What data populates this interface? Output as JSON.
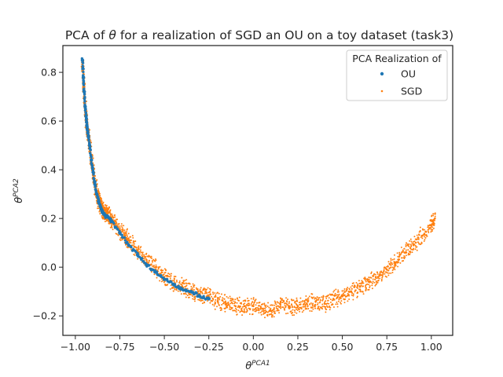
{
  "chart_data": {
    "type": "scatter",
    "title": "PCA of θ for a realization of SGD an OU on a toy dataset (task3)",
    "title_parts": {
      "prefix": "PCA of ",
      "theta": "θ",
      "suffix": " for a realization of SGD an OU on a toy dataset (task3)"
    },
    "xlabel": {
      "base": "θ",
      "sup": "PCA1"
    },
    "ylabel": {
      "base": "θ",
      "sup": "PCA2"
    },
    "xlim": [
      -1.07,
      1.12
    ],
    "ylim": [
      -0.28,
      0.91
    ],
    "xticks": [
      -1.0,
      -0.75,
      -0.5,
      -0.25,
      0.0,
      0.25,
      0.5,
      0.75,
      1.0
    ],
    "xtick_labels": [
      "−1.00",
      "−0.75",
      "−0.50",
      "−0.25",
      "0.00",
      "0.25",
      "0.50",
      "0.75",
      "1.00"
    ],
    "yticks": [
      -0.2,
      0.0,
      0.2,
      0.4,
      0.6,
      0.8
    ],
    "ytick_labels": [
      "−0.2",
      "0.0",
      "0.2",
      "0.4",
      "0.6",
      "0.8"
    ],
    "grid": false,
    "legend": {
      "title": "PCA Realization of",
      "position": "top-right",
      "entries": [
        {
          "name": "OU",
          "color": "#1f77b4"
        },
        {
          "name": "SGD",
          "color": "#ff7f0e"
        }
      ]
    },
    "series": [
      {
        "name": "OU",
        "color": "#1f77b4",
        "marker_size": 2.2,
        "x": [
          -0.96,
          -0.955,
          -0.95,
          -0.945,
          -0.94,
          -0.935,
          -0.93,
          -0.92,
          -0.91,
          -0.9,
          -0.89,
          -0.88,
          -0.87,
          -0.86,
          -0.85,
          -0.84,
          -0.83,
          -0.82,
          -0.8,
          -0.75,
          -0.7,
          -0.65,
          -0.6,
          -0.55,
          -0.5,
          -0.45,
          -0.4,
          -0.35,
          -0.3,
          -0.25
        ],
        "y": [
          0.85,
          0.78,
          0.72,
          0.66,
          0.62,
          0.58,
          0.55,
          0.5,
          0.44,
          0.39,
          0.34,
          0.3,
          0.27,
          0.25,
          0.23,
          0.22,
          0.21,
          0.21,
          0.19,
          0.14,
          0.09,
          0.05,
          0.01,
          -0.02,
          -0.05,
          -0.07,
          -0.09,
          -0.1,
          -0.12,
          -0.13
        ]
      },
      {
        "name": "SGD",
        "color": "#ff7f0e",
        "marker_size": 1.3,
        "x": [
          -0.96,
          -0.955,
          -0.95,
          -0.945,
          -0.94,
          -0.935,
          -0.93,
          -0.92,
          -0.91,
          -0.9,
          -0.89,
          -0.88,
          -0.87,
          -0.86,
          -0.85,
          -0.84,
          -0.83,
          -0.82,
          -0.8,
          -0.78,
          -0.75,
          -0.72,
          -0.7,
          -0.65,
          -0.6,
          -0.55,
          -0.5,
          -0.45,
          -0.4,
          -0.35,
          -0.3,
          -0.25,
          -0.2,
          -0.15,
          -0.1,
          -0.05,
          0.0,
          0.05,
          0.1,
          0.15,
          0.2,
          0.25,
          0.3,
          0.35,
          0.4,
          0.45,
          0.5,
          0.55,
          0.6,
          0.65,
          0.7,
          0.75,
          0.8,
          0.85,
          0.9,
          0.95,
          1.0,
          1.02
        ],
        "y": [
          0.84,
          0.78,
          0.72,
          0.66,
          0.62,
          0.58,
          0.55,
          0.5,
          0.44,
          0.39,
          0.34,
          0.31,
          0.28,
          0.26,
          0.24,
          0.23,
          0.22,
          0.22,
          0.2,
          0.18,
          0.15,
          0.13,
          0.11,
          0.07,
          0.03,
          0.0,
          -0.04,
          -0.07,
          -0.08,
          -0.1,
          -0.11,
          -0.12,
          -0.14,
          -0.15,
          -0.16,
          -0.16,
          -0.16,
          -0.17,
          -0.18,
          -0.15,
          -0.16,
          -0.16,
          -0.15,
          -0.14,
          -0.15,
          -0.13,
          -0.12,
          -0.1,
          -0.08,
          -0.06,
          -0.04,
          -0.01,
          0.02,
          0.06,
          0.09,
          0.13,
          0.17,
          0.2
        ]
      }
    ]
  }
}
